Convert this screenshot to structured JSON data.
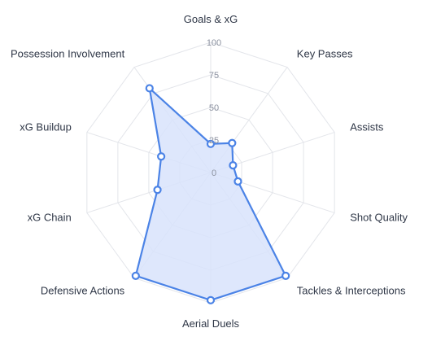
{
  "chart_data": {
    "type": "radar",
    "axes": [
      "Goals & xG",
      "Key Passes",
      "Assists",
      "Shot Quality",
      "Tackles & Interceptions",
      "Aerial Duels",
      "Defensive Actions",
      "xG Chain",
      "xG Buildup",
      "Possession Involvement"
    ],
    "values": [
      22,
      28,
      18,
      22,
      98,
      98,
      98,
      43,
      40,
      80
    ],
    "ticks": [
      0,
      25,
      50,
      75,
      100
    ],
    "tick_labels": [
      "0",
      "25",
      "50",
      "75",
      "100"
    ],
    "r_range": [
      0,
      100
    ],
    "grid": true,
    "colors": {
      "series_line": "#4b83e6",
      "series_fill": "#d8e3fb",
      "grid": "#e3e5ea",
      "point_fill": "#ffffff"
    }
  }
}
